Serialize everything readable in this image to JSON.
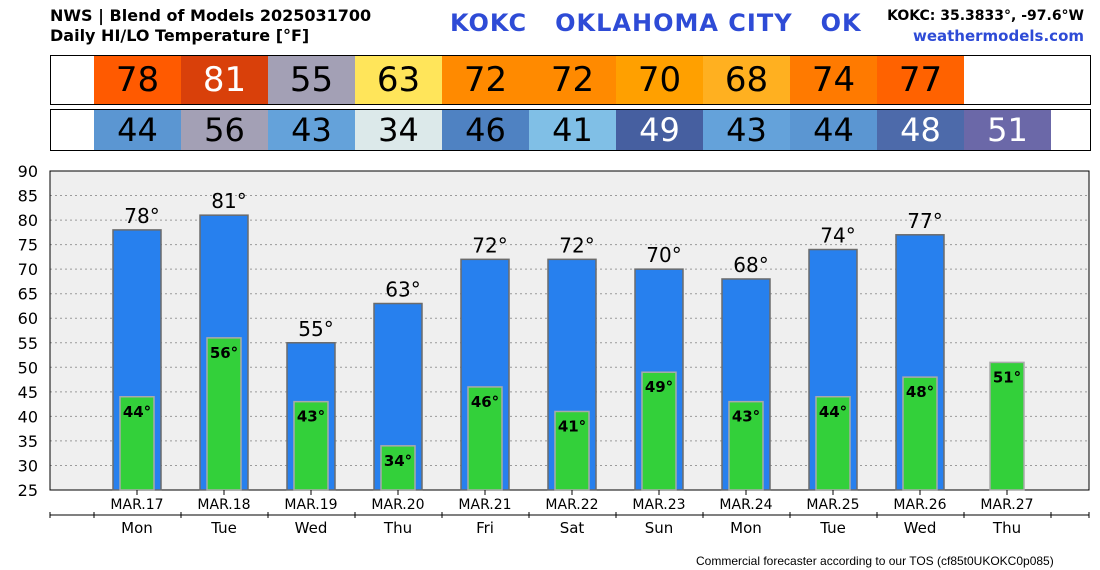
{
  "header": {
    "line1": "NWS | Blend of Models 2025031700",
    "line2": "Daily HI/LO Temperature [°F]",
    "station": "KOKC   OKLAHOMA CITY   OK",
    "coords": "KOKC: 35.3833°, -97.6°W",
    "site": "weathermodels.com"
  },
  "high_strip": [
    {
      "text": "78",
      "bg": "#ff5a00",
      "fg": "#000000"
    },
    {
      "text": "81",
      "bg": "#d9400a",
      "fg": "#ffffff"
    },
    {
      "text": "55",
      "bg": "#a3a0b5",
      "fg": "#000000"
    },
    {
      "text": "63",
      "bg": "#ffe55a",
      "fg": "#000000"
    },
    {
      "text": "72",
      "bg": "#ff8a00",
      "fg": "#000000"
    },
    {
      "text": "72",
      "bg": "#ff8a00",
      "fg": "#000000"
    },
    {
      "text": "70",
      "bg": "#ffa000",
      "fg": "#000000"
    },
    {
      "text": "68",
      "bg": "#ffb020",
      "fg": "#000000"
    },
    {
      "text": "74",
      "bg": "#ff7a00",
      "fg": "#000000"
    },
    {
      "text": "77",
      "bg": "#ff6200",
      "fg": "#000000"
    }
  ],
  "low_strip": [
    {
      "text": "44",
      "bg": "#5b96d2",
      "fg": "#000000"
    },
    {
      "text": "56",
      "bg": "#a3a0b5",
      "fg": "#000000"
    },
    {
      "text": "43",
      "bg": "#64a2da",
      "fg": "#000000"
    },
    {
      "text": "34",
      "bg": "#dce9ea",
      "fg": "#000000"
    },
    {
      "text": "46",
      "bg": "#4f82c2",
      "fg": "#000000"
    },
    {
      "text": "41",
      "bg": "#80bfe6",
      "fg": "#000000"
    },
    {
      "text": "49",
      "bg": "#465fa0",
      "fg": "#ffffff"
    },
    {
      "text": "43",
      "bg": "#64a2da",
      "fg": "#000000"
    },
    {
      "text": "44",
      "bg": "#5b96d2",
      "fg": "#000000"
    },
    {
      "text": "48",
      "bg": "#4d6aaa",
      "fg": "#ffffff"
    },
    {
      "text": "51",
      "bg": "#6b68a8",
      "fg": "#ffffff"
    }
  ],
  "chart_data": {
    "type": "bar",
    "categories": [
      "MAR.17",
      "MAR.18",
      "MAR.19",
      "MAR.20",
      "MAR.21",
      "MAR.22",
      "MAR.23",
      "MAR.24",
      "MAR.25",
      "MAR.26",
      "MAR.27"
    ],
    "weekdays": [
      "Mon",
      "Tue",
      "Wed",
      "Thu",
      "Fri",
      "Sat",
      "Sun",
      "Mon",
      "Tue",
      "Wed",
      "Thu"
    ],
    "series": [
      {
        "values": [
          78,
          81,
          55,
          63,
          72,
          72,
          70,
          68,
          74,
          77,
          null
        ],
        "color": "#2780ee",
        "labels": [
          "78°",
          "81°",
          "55°",
          "63°",
          "72°",
          "72°",
          "70°",
          "68°",
          "74°",
          "77°",
          ""
        ]
      },
      {
        "values": [
          44,
          56,
          43,
          34,
          46,
          41,
          49,
          43,
          44,
          48,
          51
        ],
        "color": "#33d03a",
        "labels": [
          "44°",
          "56°",
          "43°",
          "34°",
          "46°",
          "41°",
          "49°",
          "43°",
          "44°",
          "48°",
          "51°"
        ]
      }
    ],
    "yticks": [
      "25",
      "30",
      "35",
      "40",
      "45",
      "50",
      "55",
      "60",
      "65",
      "70",
      "75",
      "80",
      "85",
      "90"
    ],
    "ylim": [
      25,
      90
    ],
    "grid": true
  },
  "footer": "Commercial forecaster according to our TOS (cf85t0UKOKC0p085)"
}
